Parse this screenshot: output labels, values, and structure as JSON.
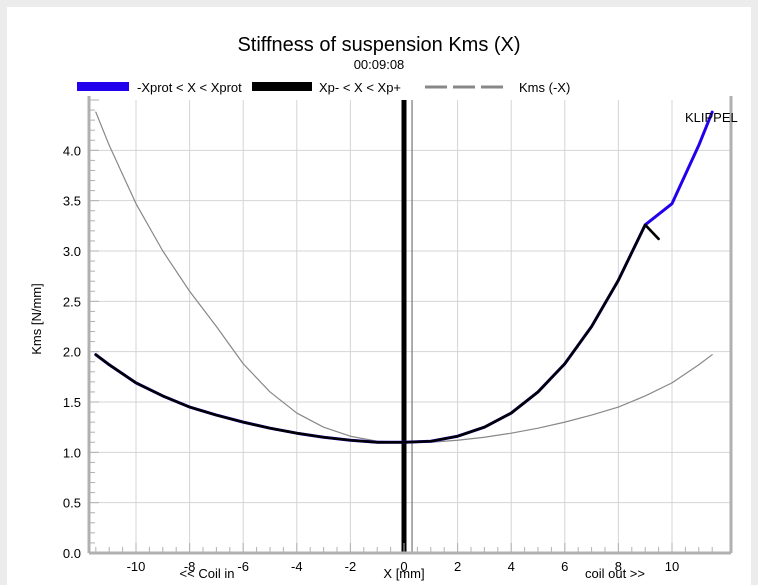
{
  "chart_data": {
    "type": "line",
    "title": "Stiffness of suspension Kms (X)",
    "subtitle": "00:09:08",
    "watermark": "KLIPPEL",
    "xlabel": "X [mm]",
    "xlabel_left": "<< Coil in",
    "xlabel_right": "coil out >>",
    "ylabel": "Kms [N/mm]",
    "xlim": [
      -12,
      12
    ],
    "ylim": [
      0,
      4.5
    ],
    "xticks": [
      -10,
      -8,
      -6,
      -4,
      -2,
      0,
      2,
      4,
      6,
      8,
      10
    ],
    "yticks": [
      "0.0",
      "0.5",
      "1.0",
      "1.5",
      "2.0",
      "2.5",
      "3.0",
      "3.5",
      "4.0"
    ],
    "grid": true,
    "legend_position": "top",
    "series": [
      {
        "name": "-Xprot < X < Xprot",
        "color": "#2200ee",
        "x": [
          -11.5,
          -11,
          -10,
          -9,
          -8,
          -7,
          -6,
          -5,
          -4,
          -3,
          -2,
          -1,
          0,
          1,
          2,
          3,
          4,
          5,
          6,
          7,
          8,
          9,
          10,
          11,
          11.5
        ],
        "y": [
          1.97,
          1.87,
          1.69,
          1.56,
          1.45,
          1.37,
          1.3,
          1.24,
          1.19,
          1.15,
          1.12,
          1.1,
          1.1,
          1.11,
          1.16,
          1.25,
          1.39,
          1.6,
          1.88,
          2.25,
          2.71,
          3.26,
          3.47,
          4.05,
          4.38
        ]
      },
      {
        "name": "Xp- < X < Xp+",
        "color": "#000000",
        "x": [
          -11.5,
          -11,
          -10,
          -9,
          -8,
          -7,
          -6,
          -5,
          -4,
          -3,
          -2,
          -1,
          0,
          1,
          2,
          3,
          4,
          5,
          6,
          7,
          8,
          9,
          9.5
        ],
        "y": [
          1.97,
          1.87,
          1.69,
          1.56,
          1.45,
          1.37,
          1.3,
          1.24,
          1.19,
          1.15,
          1.12,
          1.1,
          1.1,
          1.11,
          1.16,
          1.25,
          1.39,
          1.6,
          1.88,
          2.25,
          2.71,
          3.26,
          3.12
        ]
      },
      {
        "name": "Kms (-X)",
        "color": "#888888",
        "x": [
          -11.5,
          -11,
          -10,
          -9,
          -8,
          -7,
          -6,
          -5,
          -4,
          -3,
          -2,
          -1,
          0,
          1,
          2,
          3,
          4,
          5,
          6,
          7,
          8,
          9,
          10,
          11,
          11.5
        ],
        "y": [
          4.38,
          4.05,
          3.47,
          3.0,
          2.6,
          2.25,
          1.88,
          1.6,
          1.39,
          1.25,
          1.16,
          1.11,
          1.1,
          1.1,
          1.12,
          1.15,
          1.19,
          1.24,
          1.3,
          1.37,
          1.45,
          1.56,
          1.69,
          1.87,
          1.97
        ]
      }
    ],
    "vertical_lines": [
      {
        "x": 0,
        "color": "#000000",
        "style": "thick"
      },
      {
        "x": 0.3,
        "color": "#777777",
        "style": "thin"
      }
    ]
  }
}
